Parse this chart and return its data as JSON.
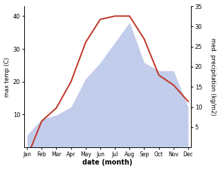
{
  "months": [
    "Jan",
    "Feb",
    "Mar",
    "Apr",
    "May",
    "Jun",
    "Jul",
    "Aug",
    "Sep",
    "Oct",
    "Nov",
    "Dec"
  ],
  "month_indices": [
    0,
    1,
    2,
    3,
    4,
    5,
    6,
    7,
    8,
    9,
    10,
    11
  ],
  "temperature": [
    -3,
    8,
    12,
    20,
    32,
    39,
    40,
    40,
    33,
    22,
    19,
    14
  ],
  "precipitation": [
    3,
    7,
    8,
    10,
    17,
    21,
    26,
    31,
    21,
    19,
    19,
    10
  ],
  "temp_color": "#c0392b",
  "precip_fill_color": "#b8c4e8",
  "temp_ylim": [
    0,
    43
  ],
  "precip_ylim": [
    0,
    35
  ],
  "temp_yticks": [
    10,
    20,
    30,
    40
  ],
  "precip_yticks": [
    5,
    10,
    15,
    20,
    25,
    30,
    35
  ],
  "xlabel": "date (month)",
  "ylabel_left": "max temp (C)",
  "ylabel_right": "med. precipitation (kg/m2)",
  "figsize": [
    3.18,
    2.47
  ],
  "dpi": 100
}
